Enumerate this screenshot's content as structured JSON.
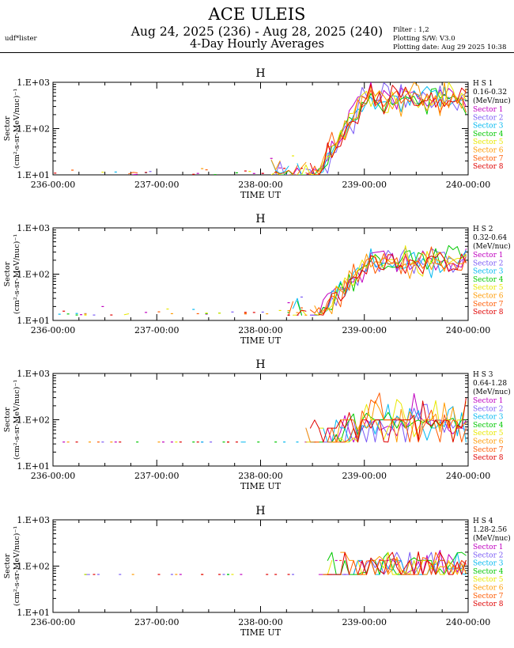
{
  "header": {
    "title": "ACE ULEIS",
    "subtitle": "Aug 24, 2025 (236) - Aug 28, 2025 (240)",
    "subtitle2": "4-Day Hourly Averages",
    "user": "udf*lister",
    "filter": "Filter : 1,2",
    "software": "Plotting S/W: V3.0",
    "plot_date": "Plotting date: Aug 29 2025 10:38"
  },
  "colors": {
    "Sector 1": "#c000c0",
    "Sector 2": "#7a5af5",
    "Sector 3": "#00b8f0",
    "Sector 4": "#00c800",
    "Sector 5": "#e8e800",
    "Sector 6": "#ff9a00",
    "Sector 7": "#ff5a00",
    "Sector 8": "#e00000"
  },
  "chart_data": [
    {
      "type": "line",
      "title": "H",
      "channel": "H S 1",
      "energy": "0.16-0.32",
      "unit": "(MeV/nuc)",
      "ylabel": "Sector",
      "ylabel2": "(cm²-s-sr-MeV/nuc)⁻¹",
      "xlabel": "TIME UT",
      "xticks": [
        "236-00:00",
        "237-00:00",
        "238-00:00",
        "239-00:00",
        "240-00:00"
      ],
      "yticks": [
        "1.E+01",
        "1.E+02",
        "1.E+03"
      ],
      "xlim_days": [
        236,
        240
      ],
      "ylim": [
        10,
        1000
      ],
      "yscale": "log",
      "legend": [
        "Sector 1",
        "Sector 2",
        "Sector 3",
        "Sector 4",
        "Sector 5",
        "Sector 6",
        "Sector 7",
        "Sector 8"
      ],
      "gen": {
        "onset": 238.55,
        "rise_end": 239.0,
        "low": 10,
        "high": 450,
        "noise": 0.16,
        "sparse_before": 238.1,
        "seed": 11
      }
    },
    {
      "type": "line",
      "title": "H",
      "channel": "H S 2",
      "energy": "0.32-0.64",
      "unit": "(MeV/nuc)",
      "ylabel": "Sector",
      "ylabel2": "(cm²-s-sr-MeV/nuc)⁻¹",
      "xlabel": "TIME UT",
      "xticks": [
        "236-00:00",
        "237-00:00",
        "238-00:00",
        "239-00:00",
        "240-00:00"
      ],
      "yticks": [
        "1.E+01",
        "1.E+02",
        "1.E+03"
      ],
      "xlim_days": [
        236,
        240
      ],
      "ylim": [
        10,
        1000
      ],
      "yscale": "log",
      "legend": [
        "Sector 1",
        "Sector 2",
        "Sector 3",
        "Sector 4",
        "Sector 5",
        "Sector 6",
        "Sector 7",
        "Sector 8"
      ],
      "gen": {
        "onset": 238.55,
        "rise_end": 239.05,
        "low": 13,
        "high": 190,
        "noise": 0.15,
        "sparse_before": 238.25,
        "seed": 23
      }
    },
    {
      "type": "line",
      "title": "H",
      "channel": "H S 3",
      "energy": "0.64-1.28",
      "unit": "(MeV/nuc)",
      "ylabel": "Sector",
      "ylabel2": "(cm²-s-sr-MeV/nuc)⁻¹",
      "xlabel": "TIME UT",
      "xticks": [
        "236-00:00",
        "237-00:00",
        "238-00:00",
        "239-00:00",
        "240-00:00"
      ],
      "yticks": [
        "1.E+01",
        "1.E+02",
        "1.E+03"
      ],
      "xlim_days": [
        236,
        240
      ],
      "ylim": [
        10,
        1000
      ],
      "yscale": "log",
      "legend": [
        "Sector 1",
        "Sector 2",
        "Sector 3",
        "Sector 4",
        "Sector 5",
        "Sector 6",
        "Sector 7",
        "Sector 8"
      ],
      "gen": {
        "onset": 238.7,
        "rise_end": 239.0,
        "low": 33,
        "high": 110,
        "noise": 0.28,
        "sparse_before": 238.4,
        "seed": 37,
        "quantized": true
      }
    },
    {
      "type": "line",
      "title": "H",
      "channel": "H S 4",
      "energy": "1.28-2.56",
      "unit": "(MeV/nuc)",
      "ylabel": "Sector",
      "ylabel2": "(cm²-s-sr-MeV/nuc)⁻¹",
      "xlabel": "TIME UT",
      "xticks": [
        "236-00:00",
        "237-00:00",
        "238-00:00",
        "239-00:00",
        "240-00:00"
      ],
      "yticks": [
        "1.E+01",
        "1.E+02",
        "1.E+03"
      ],
      "xlim_days": [
        236,
        240
      ],
      "ylim": [
        10,
        1000
      ],
      "yscale": "log",
      "legend": [
        "Sector 1",
        "Sector 2",
        "Sector 3",
        "Sector 4",
        "Sector 5",
        "Sector 6",
        "Sector 7",
        "Sector 8"
      ],
      "gen": {
        "onset": 238.9,
        "rise_end": 239.2,
        "low": 66,
        "high": 100,
        "noise": 0.18,
        "sparse_before": 238.6,
        "seed": 53,
        "quantized": true
      }
    }
  ]
}
